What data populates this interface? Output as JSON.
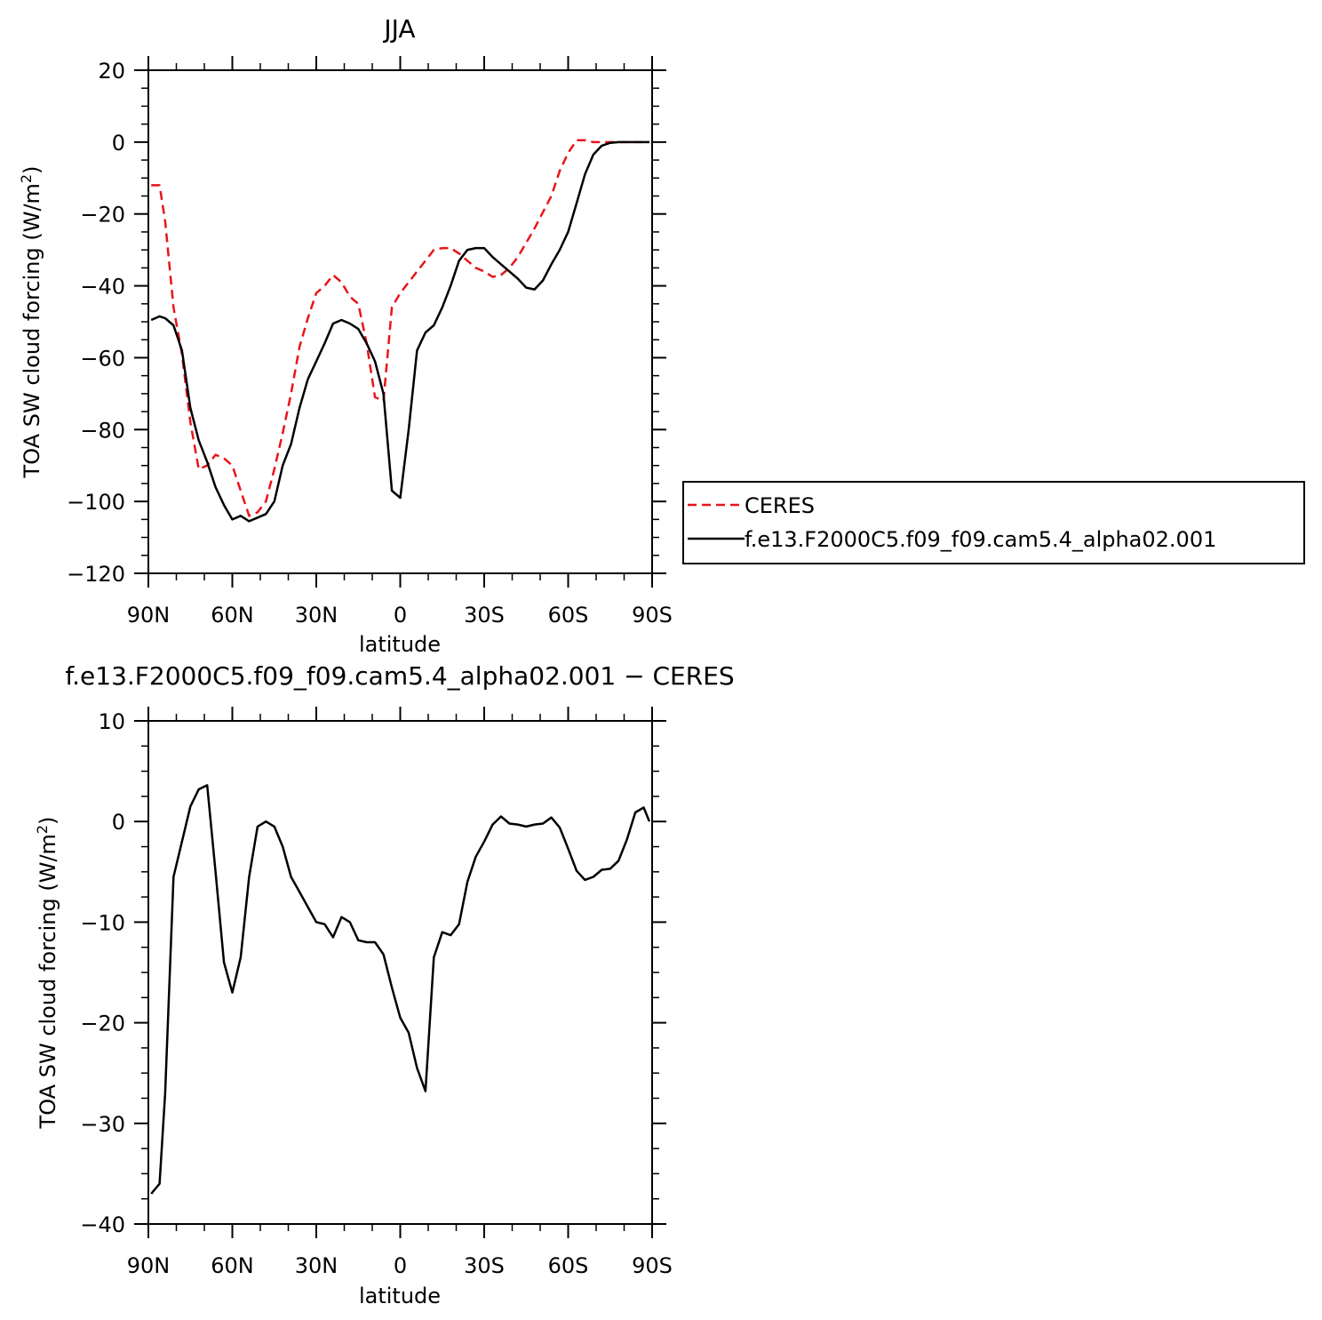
{
  "chart_data": [
    {
      "type": "line",
      "title": "JJA",
      "xlabel": "latitude",
      "ylabel": "TOA SW cloud forcing (W/m",
      "ylabel_sup": "2",
      "ylabel_close": ")",
      "xlim": [
        90,
        -90
      ],
      "ylim": [
        -120,
        20
      ],
      "x_ticks": [
        90,
        60,
        30,
        0,
        -30,
        -60,
        -90
      ],
      "x_tick_labels": [
        "90N",
        "60N",
        "30N",
        "0",
        "30S",
        "60S",
        "90S"
      ],
      "y_ticks": [
        20,
        0,
        -20,
        -40,
        -60,
        -80,
        -100,
        -120
      ],
      "y_tick_labels": [
        "20",
        "0",
        "−20",
        "−40",
        "−60",
        "−80",
        "−100",
        "−120"
      ],
      "grid": false,
      "legend_position": "right",
      "x": [
        89,
        86,
        84,
        81,
        78,
        75,
        72,
        69,
        66,
        63,
        60,
        57,
        54,
        51,
        48,
        45,
        42,
        39,
        36,
        33,
        30,
        27,
        24,
        21,
        18,
        15,
        12,
        9,
        6,
        3,
        0,
        -3,
        -6,
        -9,
        -12,
        -15,
        -18,
        -21,
        -24,
        -27,
        -30,
        -33,
        -36,
        -39,
        -42,
        -45,
        -48,
        -51,
        -54,
        -57,
        -60,
        -63,
        -66,
        -69,
        -72,
        -75,
        -78,
        -81,
        -84,
        -87,
        -89
      ],
      "series": [
        {
          "name": "CERES",
          "color": "#e8141a",
          "dash": "dashed",
          "values": [
            -12,
            -12,
            -22,
            -46,
            -59,
            -78,
            -91,
            -90,
            -87,
            -88,
            -90,
            -97,
            -104,
            -103,
            -100,
            -91,
            -81,
            -70,
            -57,
            -49,
            -42,
            -40,
            -37,
            -39,
            -43,
            -45,
            -56,
            -71,
            -72,
            -46,
            -42,
            -39,
            -36,
            -33,
            -30,
            -29.5,
            -29.5,
            -31,
            -33,
            -35,
            -36,
            -37.5,
            -37,
            -35,
            -32,
            -28,
            -24,
            -19.5,
            -15,
            -8,
            -3,
            0.5,
            0.5,
            0,
            0,
            0,
            0,
            0,
            0,
            0,
            0
          ]
        },
        {
          "name": "f.e13.F2000C5.f09_f09.cam5.4_alpha02.001",
          "color": "#000000",
          "dash": "solid",
          "values": [
            -49.5,
            -48.5,
            -49,
            -51,
            -58,
            -74,
            -83,
            -89,
            -96,
            -101,
            -105,
            -104,
            -105.5,
            -104.5,
            -103.5,
            -100,
            -90,
            -84,
            -74,
            -66,
            -61,
            -56,
            -50.5,
            -49.5,
            -50.5,
            -52,
            -56,
            -61,
            -70,
            -97,
            -99,
            -80,
            -58,
            -53,
            -51,
            -46,
            -40,
            -33,
            -30,
            -29.5,
            -29.5,
            -32,
            -34,
            -36,
            -38,
            -40.5,
            -41,
            -38.5,
            -34,
            -30,
            -25,
            -17,
            -9,
            -3.5,
            -1,
            -0.2,
            0,
            0,
            0,
            0,
            0
          ]
        }
      ]
    },
    {
      "type": "line",
      "title": "f.e13.F2000C5.f09_f09.cam5.4_alpha02.001 − CERES",
      "xlabel": "latitude",
      "ylabel": "TOA SW cloud forcing (W/m",
      "ylabel_sup": "2",
      "ylabel_close": ")",
      "xlim": [
        90,
        -90
      ],
      "ylim": [
        -40,
        10
      ],
      "x_ticks": [
        90,
        60,
        30,
        0,
        -30,
        -60,
        -90
      ],
      "x_tick_labels": [
        "90N",
        "60N",
        "30N",
        "0",
        "30S",
        "60S",
        "90S"
      ],
      "y_ticks": [
        10,
        0,
        -10,
        -20,
        -30,
        -40
      ],
      "y_tick_labels": [
        "10",
        "0",
        "−10",
        "−20",
        "−30",
        "−40"
      ],
      "grid": false,
      "x": [
        89,
        86,
        84,
        81,
        78,
        75,
        72,
        69,
        66,
        63,
        60,
        57,
        54,
        51,
        48,
        45,
        42,
        39,
        36,
        33,
        30,
        27,
        24,
        21,
        18,
        15,
        12,
        9,
        6,
        3,
        0,
        -3,
        -6,
        -9,
        -12,
        -15,
        -18,
        -21,
        -24,
        -27,
        -30,
        -33,
        -36,
        -39,
        -42,
        -45,
        -48,
        -51,
        -54,
        -57,
        -60,
        -63,
        -66,
        -69,
        -72,
        -75,
        -78,
        -81,
        -84,
        -87,
        -89
      ],
      "series": [
        {
          "color": "#000000",
          "dash": "solid",
          "values": [
            -37,
            -36,
            -27,
            -5.5,
            -2,
            1.5,
            3.2,
            3.6,
            -5,
            -14,
            -17,
            -13.5,
            -5.5,
            -0.5,
            0,
            -0.5,
            -2.5,
            -5.5,
            -7,
            -8.5,
            -10,
            -10.2,
            -11.5,
            -9.5,
            -10,
            -11.8,
            -12,
            -12,
            -13.2,
            -16.5,
            -19.5,
            -21,
            -24.5,
            -26.8,
            -13.5,
            -11,
            -11.3,
            -10.2,
            -6,
            -3.5,
            -2,
            -0.3,
            0.5,
            -0.2,
            -0.3,
            -0.5,
            -0.3,
            -0.2,
            0.4,
            -0.6,
            -2.7,
            -4.9,
            -5.8,
            -5.5,
            -4.8,
            -4.7,
            -3.9,
            -1.8,
            0.9,
            1.4,
            0
          ]
        }
      ]
    }
  ]
}
